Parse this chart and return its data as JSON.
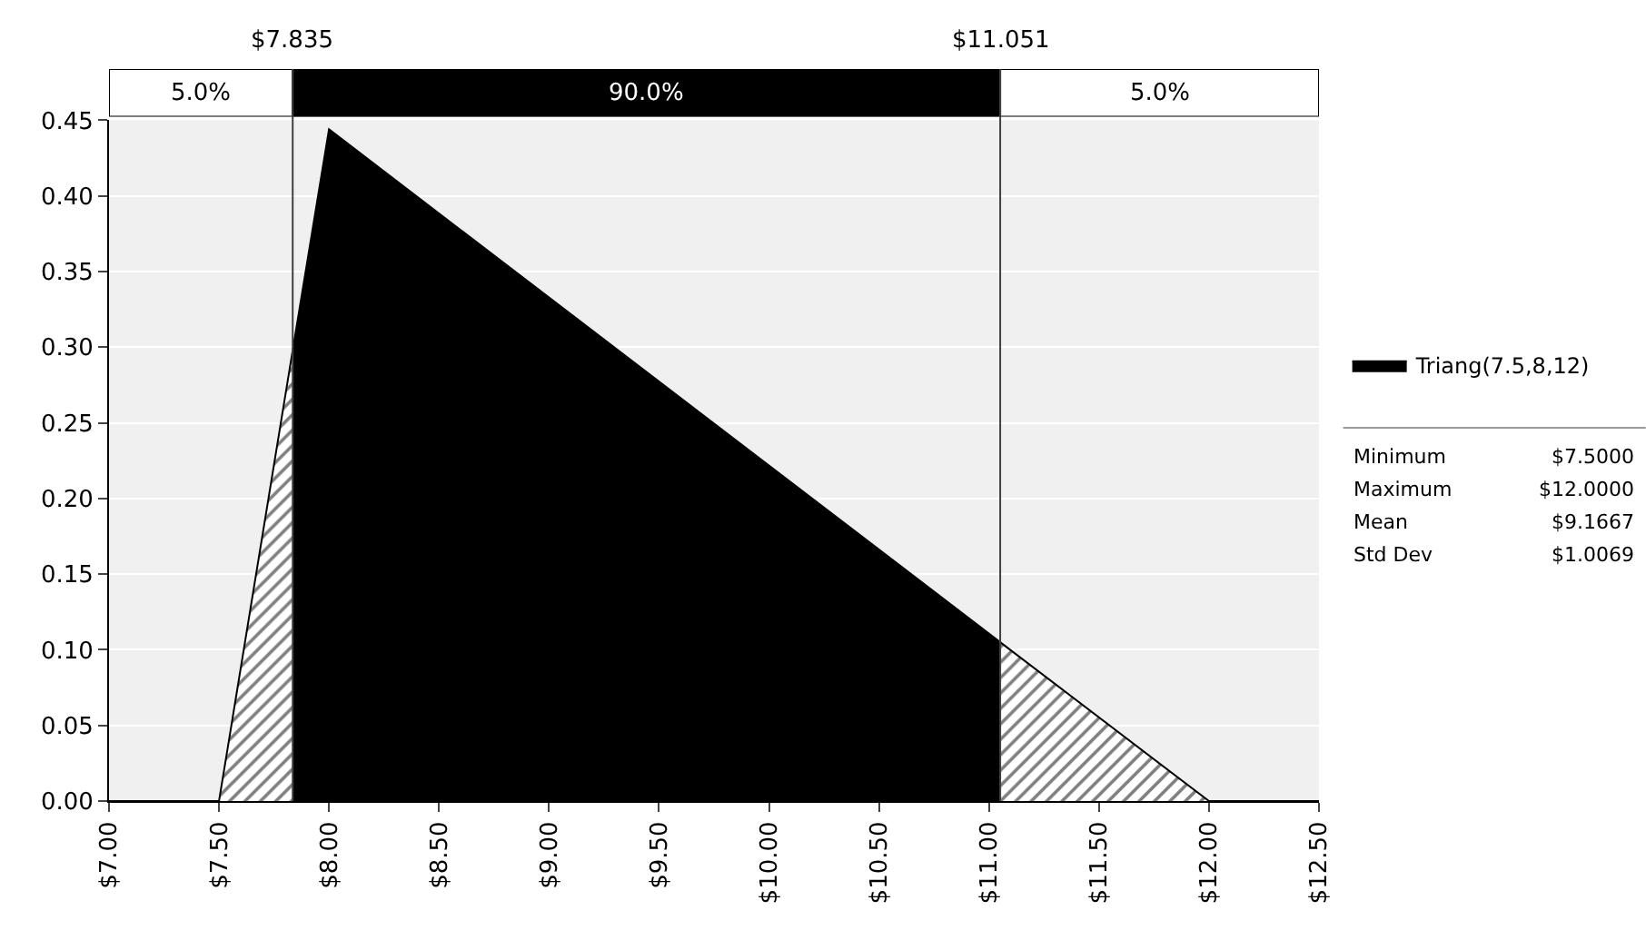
{
  "chart_data": {
    "type": "area",
    "series": [
      {
        "color": "#000000",
        "x": [
          7.0,
          7.5,
          7.835
        ],
        "values": [
          0,
          0,
          0.298
        ]
      },
      {
        "name": "Triang(7.5,8,12)",
        "color": "#000000",
        "x": [
          7.835,
          8.0,
          11.051
        ],
        "values": [
          0.298,
          0.444,
          0.105
        ]
      },
      {
        "color": "#000000",
        "x": [
          11.051,
          12.0,
          12.5
        ],
        "values": [
          0.105,
          0,
          0
        ]
      }
    ],
    "xlim": [
      7.0,
      12.5
    ],
    "xticks": [
      {
        "value": 7.0,
        "label": "$7.00"
      },
      {
        "value": 7.5,
        "label": "$7.50"
      },
      {
        "value": 8.0,
        "label": "$8.00"
      },
      {
        "value": 8.5,
        "label": "$8.50"
      },
      {
        "value": 9.0,
        "label": "$9.00"
      },
      {
        "value": 9.5,
        "label": "$9.50"
      },
      {
        "value": 10.0,
        "label": "$10.00"
      },
      {
        "value": 10.5,
        "label": "$10.50"
      },
      {
        "value": 11.0,
        "label": "$11.00"
      },
      {
        "value": 11.5,
        "label": "$11.50"
      },
      {
        "value": 12.0,
        "label": "$12.00"
      },
      {
        "value": 12.5,
        "label": "$12.50"
      }
    ],
    "ylim": [
      0,
      0.45
    ],
    "yticks": [
      {
        "value": 0,
        "label": "0.00"
      },
      {
        "value": 0.05,
        "label": "0.05"
      },
      {
        "value": 0.1,
        "label": "0.10"
      },
      {
        "value": 0.15,
        "label": "0.15"
      },
      {
        "value": 0.2,
        "label": "0.20"
      },
      {
        "value": 0.25,
        "label": "0.25"
      },
      {
        "value": 0.3,
        "label": "0.30"
      },
      {
        "value": 0.35,
        "label": "0.35"
      },
      {
        "value": 0.4,
        "label": "0.40"
      },
      {
        "value": 0.45,
        "label": "0.45"
      }
    ],
    "ref_lines": [
      {
        "axis": "x",
        "value": 7.835,
        "label": "$7.835",
        "color": "#404040"
      },
      {
        "axis": "x",
        "value": 11.051,
        "label": "$11.051",
        "color": "#404040"
      }
    ],
    "annotations": [
      "5.0%",
      "90.0%",
      "5.0%",
      "Minimum",
      "$7.5000",
      "Maximum",
      "$12.0000",
      "Mean",
      "$9.1667",
      "Std Dev",
      "$1.0069"
    ],
    "grid": "y",
    "legend": "right"
  }
}
